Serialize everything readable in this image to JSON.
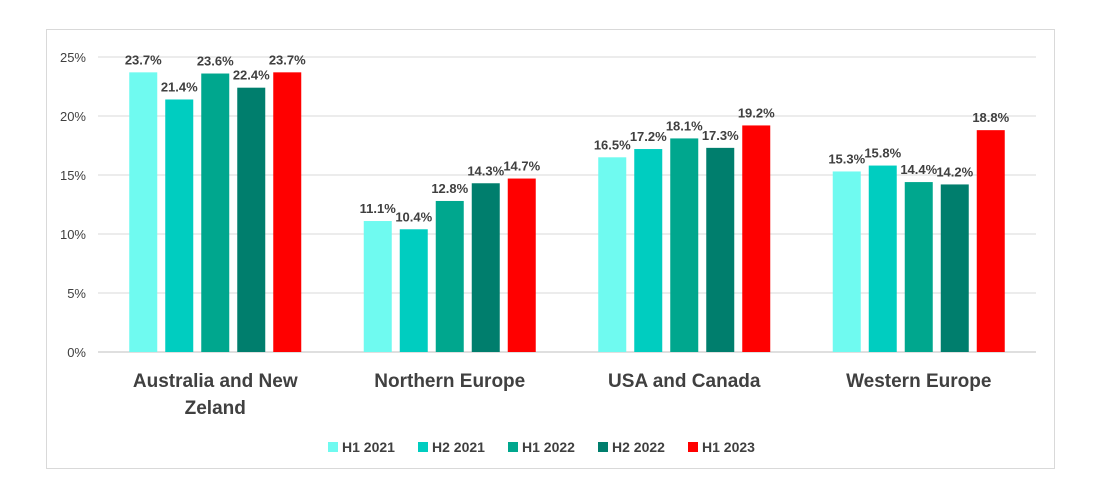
{
  "chart_data": {
    "type": "bar",
    "title": "",
    "xlabel": "",
    "ylabel": "",
    "ylim": [
      0,
      25
    ],
    "y_ticks": [
      "0%",
      "5%",
      "10%",
      "15%",
      "20%",
      "25%"
    ],
    "y_tick_values": [
      0,
      5,
      10,
      15,
      20,
      25
    ],
    "grid": true,
    "legend_position": "bottom",
    "categories": [
      [
        "Australia and New",
        "Zeland"
      ],
      [
        "Northern Europe"
      ],
      [
        "USA and Canada"
      ],
      [
        "Western Europe"
      ]
    ],
    "series": [
      {
        "name": "H1 2021",
        "color": "#6ffaf0",
        "values": [
          23.7,
          11.1,
          16.5,
          15.3
        ],
        "labels": [
          "23.7%",
          "11.1%",
          "16.5%",
          "15.3%"
        ]
      },
      {
        "name": "H2 2021",
        "color": "#00cdc0",
        "values": [
          21.4,
          10.4,
          17.2,
          15.8
        ],
        "labels": [
          "21.4%",
          "10.4%",
          "17.2%",
          "15.8%"
        ]
      },
      {
        "name": "H1 2022",
        "color": "#00a78e",
        "values": [
          23.6,
          12.8,
          18.1,
          14.4
        ],
        "labels": [
          "23.6%",
          "12.8%",
          "18.1%",
          "14.4%"
        ]
      },
      {
        "name": "H2 2022",
        "color": "#007e6d",
        "values": [
          22.4,
          14.3,
          17.3,
          14.2
        ],
        "labels": [
          "22.4%",
          "14.3%",
          "17.3%",
          "14.2%"
        ]
      },
      {
        "name": "H1 2023",
        "color": "#ff0000",
        "values": [
          23.7,
          14.7,
          19.2,
          18.8
        ],
        "labels": [
          "23.7%",
          "14.7%",
          "19.2%",
          "18.8%"
        ]
      }
    ]
  }
}
